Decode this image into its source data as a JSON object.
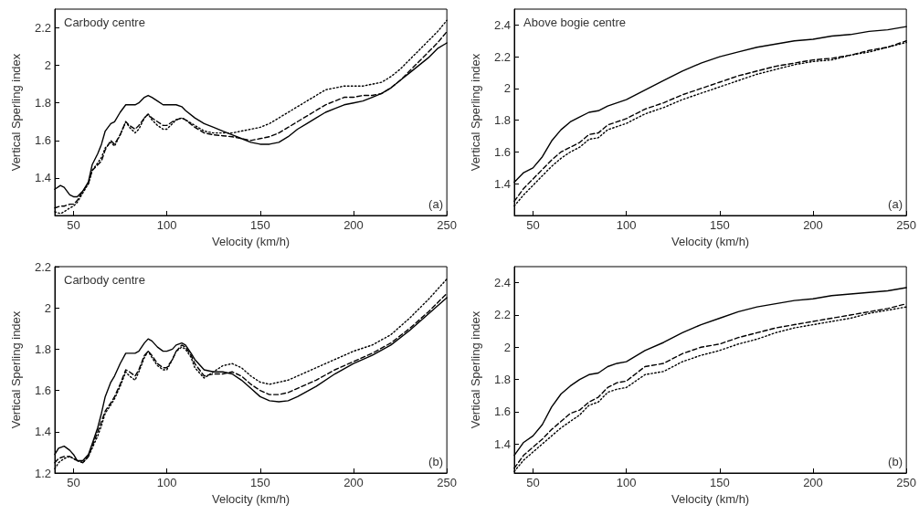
{
  "chart_data": [
    {
      "type": "line",
      "xlabel": "Velocity (km/h)",
      "ylabel": "Vertical Sperling index",
      "annotations": [
        "Carbody centre",
        "(a)"
      ],
      "xlim": [
        40,
        250
      ],
      "xticks": [
        50,
        100,
        150,
        200,
        250
      ],
      "ylim": [
        1.2,
        2.3
      ],
      "yticks": [
        1.4,
        1.6,
        1.8,
        2,
        2.2
      ],
      "grid": false,
      "marker": "none",
      "x": [
        40,
        43,
        45,
        48,
        50,
        52,
        55,
        58,
        60,
        63,
        65,
        67,
        70,
        72,
        75,
        78,
        80,
        83,
        85,
        88,
        90,
        92,
        95,
        98,
        100,
        103,
        105,
        108,
        110,
        115,
        120,
        125,
        130,
        135,
        140,
        145,
        150,
        155,
        160,
        165,
        170,
        175,
        180,
        185,
        190,
        195,
        200,
        205,
        210,
        215,
        220,
        225,
        230,
        235,
        240,
        245,
        250
      ],
      "series": [
        {
          "color": "#000000",
          "line_style": "solid",
          "values": [
            1.34,
            1.36,
            1.35,
            1.31,
            1.3,
            1.3,
            1.33,
            1.38,
            1.47,
            1.53,
            1.58,
            1.65,
            1.69,
            1.7,
            1.75,
            1.79,
            1.79,
            1.79,
            1.8,
            1.83,
            1.84,
            1.83,
            1.81,
            1.79,
            1.79,
            1.79,
            1.79,
            1.78,
            1.76,
            1.72,
            1.69,
            1.67,
            1.65,
            1.63,
            1.61,
            1.59,
            1.58,
            1.58,
            1.59,
            1.62,
            1.66,
            1.69,
            1.72,
            1.75,
            1.77,
            1.79,
            1.8,
            1.81,
            1.83,
            1.85,
            1.88,
            1.92,
            1.96,
            2.0,
            2.04,
            2.09,
            2.12
          ]
        },
        {
          "color": "#000000",
          "line_style": "dashed",
          "values": [
            1.24,
            1.25,
            1.25,
            1.26,
            1.26,
            1.28,
            1.33,
            1.37,
            1.44,
            1.47,
            1.49,
            1.55,
            1.6,
            1.58,
            1.63,
            1.7,
            1.68,
            1.66,
            1.68,
            1.72,
            1.74,
            1.72,
            1.7,
            1.68,
            1.68,
            1.7,
            1.71,
            1.72,
            1.71,
            1.67,
            1.64,
            1.63,
            1.625,
            1.62,
            1.61,
            1.6,
            1.61,
            1.62,
            1.64,
            1.67,
            1.7,
            1.73,
            1.76,
            1.79,
            1.81,
            1.83,
            1.83,
            1.84,
            1.84,
            1.85,
            1.88,
            1.92,
            1.97,
            2.02,
            2.07,
            2.12,
            2.18
          ]
        },
        {
          "color": "#000000",
          "line_style": "dotted",
          "values": [
            1.22,
            1.21,
            1.22,
            1.24,
            1.25,
            1.27,
            1.32,
            1.37,
            1.44,
            1.48,
            1.51,
            1.56,
            1.59,
            1.57,
            1.63,
            1.7,
            1.67,
            1.64,
            1.66,
            1.72,
            1.74,
            1.71,
            1.68,
            1.66,
            1.66,
            1.69,
            1.71,
            1.72,
            1.71,
            1.68,
            1.65,
            1.64,
            1.64,
            1.64,
            1.65,
            1.66,
            1.67,
            1.69,
            1.72,
            1.75,
            1.78,
            1.81,
            1.84,
            1.87,
            1.88,
            1.89,
            1.89,
            1.89,
            1.9,
            1.91,
            1.94,
            1.98,
            2.03,
            2.08,
            2.13,
            2.18,
            2.24
          ]
        }
      ]
    },
    {
      "type": "line",
      "xlabel": "Velocity (km/h)",
      "ylabel": "Vertical Sperling index",
      "annotations": [
        "Above bogie centre",
        "(a)"
      ],
      "xlim": [
        40,
        250
      ],
      "xticks": [
        50,
        100,
        150,
        200,
        250
      ],
      "ylim": [
        1.2,
        2.5
      ],
      "yticks": [
        1.4,
        1.6,
        1.8,
        2,
        2.2,
        2.4
      ],
      "grid": false,
      "marker": "none",
      "x": [
        40,
        45,
        50,
        55,
        60,
        65,
        70,
        75,
        80,
        85,
        90,
        95,
        100,
        110,
        120,
        130,
        140,
        150,
        160,
        170,
        180,
        190,
        200,
        210,
        220,
        230,
        240,
        250
      ],
      "series": [
        {
          "color": "#000000",
          "line_style": "solid",
          "values": [
            1.41,
            1.47,
            1.5,
            1.57,
            1.67,
            1.74,
            1.79,
            1.82,
            1.85,
            1.86,
            1.89,
            1.91,
            1.93,
            1.99,
            2.05,
            2.11,
            2.16,
            2.2,
            2.23,
            2.26,
            2.28,
            2.3,
            2.31,
            2.33,
            2.34,
            2.36,
            2.37,
            2.39
          ]
        },
        {
          "color": "#000000",
          "line_style": "dashed",
          "values": [
            1.29,
            1.37,
            1.43,
            1.49,
            1.55,
            1.6,
            1.63,
            1.66,
            1.71,
            1.72,
            1.77,
            1.79,
            1.81,
            1.87,
            1.91,
            1.96,
            2.0,
            2.04,
            2.08,
            2.11,
            2.14,
            2.16,
            2.18,
            2.19,
            2.21,
            2.24,
            2.26,
            2.3
          ]
        },
        {
          "color": "#000000",
          "line_style": "dotted",
          "values": [
            1.26,
            1.33,
            1.39,
            1.45,
            1.51,
            1.56,
            1.6,
            1.63,
            1.68,
            1.69,
            1.74,
            1.76,
            1.78,
            1.84,
            1.88,
            1.93,
            1.97,
            2.01,
            2.05,
            2.09,
            2.12,
            2.15,
            2.17,
            2.18,
            2.21,
            2.23,
            2.26,
            2.29
          ]
        }
      ]
    },
    {
      "type": "line",
      "xlabel": "Velocity (km/h)",
      "ylabel": "Vertical Sperling index",
      "annotations": [
        "Carbody centre",
        "(b)"
      ],
      "xlim": [
        40,
        250
      ],
      "xticks": [
        50,
        100,
        150,
        200,
        250
      ],
      "ylim": [
        1.2,
        2.2
      ],
      "yticks": [
        1.2,
        1.4,
        1.6,
        1.8,
        2,
        2.2
      ],
      "grid": false,
      "marker": "none",
      "x": [
        40,
        42,
        45,
        48,
        50,
        52,
        55,
        58,
        60,
        63,
        65,
        67,
        70,
        72,
        75,
        78,
        80,
        83,
        85,
        88,
        90,
        92,
        95,
        98,
        100,
        103,
        105,
        108,
        110,
        113,
        115,
        120,
        125,
        130,
        135,
        140,
        145,
        150,
        155,
        160,
        165,
        170,
        180,
        190,
        200,
        210,
        220,
        230,
        240,
        250
      ],
      "series": [
        {
          "color": "#000000",
          "line_style": "solid",
          "values": [
            1.29,
            1.32,
            1.33,
            1.31,
            1.29,
            1.26,
            1.26,
            1.29,
            1.34,
            1.42,
            1.49,
            1.57,
            1.64,
            1.67,
            1.73,
            1.78,
            1.78,
            1.78,
            1.79,
            1.83,
            1.85,
            1.84,
            1.81,
            1.79,
            1.79,
            1.8,
            1.82,
            1.83,
            1.82,
            1.78,
            1.75,
            1.7,
            1.69,
            1.69,
            1.68,
            1.65,
            1.61,
            1.57,
            1.55,
            1.545,
            1.55,
            1.57,
            1.62,
            1.68,
            1.73,
            1.77,
            1.82,
            1.89,
            1.97,
            2.05
          ]
        },
        {
          "color": "#000000",
          "line_style": "dashed",
          "values": [
            1.25,
            1.27,
            1.28,
            1.28,
            1.27,
            1.26,
            1.25,
            1.28,
            1.33,
            1.4,
            1.45,
            1.5,
            1.54,
            1.57,
            1.63,
            1.7,
            1.69,
            1.67,
            1.7,
            1.77,
            1.79,
            1.77,
            1.73,
            1.71,
            1.71,
            1.75,
            1.79,
            1.82,
            1.81,
            1.77,
            1.73,
            1.67,
            1.68,
            1.68,
            1.69,
            1.67,
            1.63,
            1.6,
            1.58,
            1.58,
            1.59,
            1.61,
            1.65,
            1.7,
            1.74,
            1.78,
            1.83,
            1.9,
            1.98,
            2.07
          ]
        },
        {
          "color": "#000000",
          "line_style": "dotted",
          "values": [
            1.22,
            1.25,
            1.27,
            1.28,
            1.27,
            1.26,
            1.25,
            1.28,
            1.32,
            1.38,
            1.43,
            1.49,
            1.53,
            1.56,
            1.62,
            1.69,
            1.67,
            1.65,
            1.69,
            1.76,
            1.79,
            1.76,
            1.72,
            1.7,
            1.7,
            1.75,
            1.79,
            1.81,
            1.8,
            1.76,
            1.71,
            1.66,
            1.69,
            1.72,
            1.73,
            1.71,
            1.67,
            1.64,
            1.63,
            1.64,
            1.65,
            1.67,
            1.71,
            1.75,
            1.79,
            1.82,
            1.87,
            1.95,
            2.04,
            2.14
          ]
        }
      ]
    },
    {
      "type": "line",
      "xlabel": "Velocity (km/h)",
      "ylabel": "Vertical Sperling index",
      "annotations": [
        "(b)"
      ],
      "xlim": [
        40,
        250
      ],
      "xticks": [
        50,
        100,
        150,
        200,
        250
      ],
      "ylim": [
        1.22,
        2.5
      ],
      "yticks": [
        1.4,
        1.6,
        1.8,
        2,
        2.2,
        2.4
      ],
      "grid": false,
      "marker": "none",
      "x": [
        40,
        45,
        50,
        55,
        60,
        65,
        70,
        75,
        80,
        85,
        90,
        95,
        100,
        110,
        120,
        130,
        140,
        150,
        160,
        170,
        180,
        190,
        200,
        210,
        220,
        230,
        240,
        250
      ],
      "series": [
        {
          "color": "#000000",
          "line_style": "solid",
          "values": [
            1.33,
            1.41,
            1.45,
            1.52,
            1.63,
            1.71,
            1.76,
            1.8,
            1.83,
            1.84,
            1.88,
            1.9,
            1.91,
            1.98,
            2.03,
            2.09,
            2.14,
            2.18,
            2.22,
            2.25,
            2.27,
            2.29,
            2.3,
            2.32,
            2.33,
            2.34,
            2.35,
            2.37
          ]
        },
        {
          "color": "#000000",
          "line_style": "dashed",
          "values": [
            1.25,
            1.33,
            1.38,
            1.43,
            1.49,
            1.54,
            1.59,
            1.61,
            1.66,
            1.69,
            1.75,
            1.78,
            1.79,
            1.88,
            1.9,
            1.96,
            2.0,
            2.02,
            2.06,
            2.09,
            2.12,
            2.14,
            2.16,
            2.18,
            2.2,
            2.22,
            2.24,
            2.27
          ]
        },
        {
          "color": "#000000",
          "line_style": "dotted",
          "values": [
            1.23,
            1.3,
            1.35,
            1.4,
            1.45,
            1.5,
            1.54,
            1.58,
            1.64,
            1.66,
            1.72,
            1.74,
            1.75,
            1.83,
            1.85,
            1.91,
            1.95,
            1.98,
            2.02,
            2.05,
            2.09,
            2.12,
            2.14,
            2.16,
            2.18,
            2.21,
            2.23,
            2.25
          ]
        }
      ]
    }
  ]
}
